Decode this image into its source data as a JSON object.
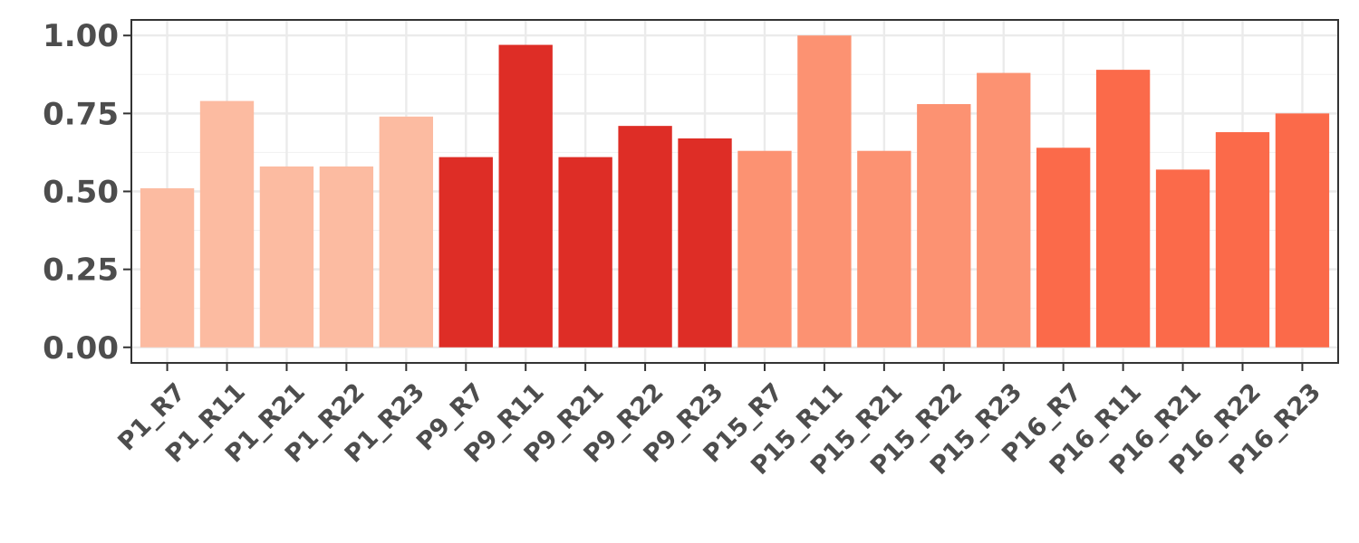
{
  "chart_data": {
    "type": "bar",
    "categories": [
      "P1_R7",
      "P1_R11",
      "P1_R21",
      "P1_R22",
      "P1_R23",
      "P9_R7",
      "P9_R11",
      "P9_R21",
      "P9_R22",
      "P9_R23",
      "P15_R7",
      "P15_R11",
      "P15_R21",
      "P15_R22",
      "P15_R23",
      "P16_R7",
      "P16_R11",
      "P16_R21",
      "P16_R22",
      "P16_R23"
    ],
    "values": [
      0.51,
      0.79,
      0.58,
      0.58,
      0.74,
      0.61,
      0.97,
      0.61,
      0.71,
      0.67,
      0.63,
      1.0,
      0.63,
      0.78,
      0.88,
      0.64,
      0.89,
      0.57,
      0.69,
      0.75
    ],
    "groups": [
      {
        "name": "P1",
        "color": "#fcbba1"
      },
      {
        "name": "P9",
        "color": "#de2d26"
      },
      {
        "name": "P15",
        "color": "#fc9272"
      },
      {
        "name": "P16",
        "color": "#fb6a4a"
      }
    ],
    "bar_group_index": [
      0,
      0,
      0,
      0,
      0,
      1,
      1,
      1,
      1,
      1,
      2,
      2,
      2,
      2,
      2,
      3,
      3,
      3,
      3,
      3
    ],
    "y_ticks": [
      "0.00",
      "0.25",
      "0.50",
      "0.75",
      "1.00"
    ],
    "y_tick_values": [
      0,
      0.25,
      0.5,
      0.75,
      1.0
    ],
    "ylim": [
      -0.05,
      1.05
    ],
    "title": "",
    "xlabel": "",
    "ylabel": "",
    "grid": true,
    "legend": "none"
  }
}
